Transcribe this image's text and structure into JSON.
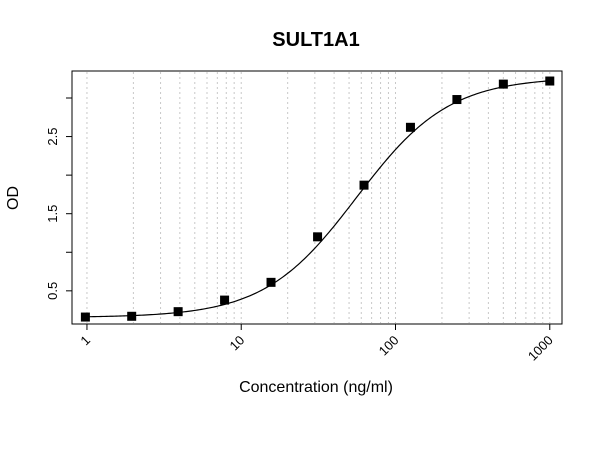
{
  "chart_data": {
    "type": "scatter",
    "title": "SULT1A1",
    "xlabel": "Concentration (ng/ml)",
    "ylabel": "OD",
    "xscale": "log",
    "xlim": [
      0.8,
      1200
    ],
    "ylim": [
      0.07,
      3.35
    ],
    "x_ticks": [
      1,
      10,
      100,
      1000
    ],
    "x_tick_labels": [
      "1",
      "10",
      "100",
      "1000"
    ],
    "y_ticks": [
      0.5,
      1.0,
      1.5,
      2.0,
      2.5,
      3.0
    ],
    "y_tick_labels": [
      "0.5",
      "",
      "1.5",
      "",
      "2.5",
      ""
    ],
    "grid": "vertical dotted at log minor ticks",
    "series": [
      {
        "marker": "square",
        "x": [
          0.977,
          1.95,
          3.9,
          7.8,
          15.6,
          31.25,
          62.5,
          125,
          250,
          500,
          1000
        ],
        "y": [
          0.16,
          0.17,
          0.23,
          0.38,
          0.61,
          1.2,
          1.87,
          2.62,
          2.98,
          3.18,
          3.22
        ]
      }
    ],
    "fit_curve": {
      "type": "4PL",
      "bottom": 0.155,
      "top": 3.27,
      "ec50": 56,
      "hill": 1.45
    }
  }
}
